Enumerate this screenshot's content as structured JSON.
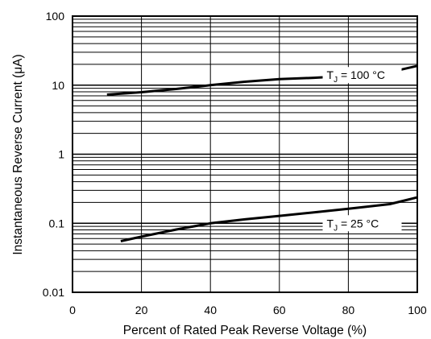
{
  "chart_data": {
    "type": "line",
    "title": "",
    "xlabel": "Percent of Rated Peak Reverse Voltage (%)",
    "ylabel": "Instantaneous Reverse Current (μA)",
    "xlim": [
      0,
      100
    ],
    "ylim": [
      0.01,
      100
    ],
    "yscale": "log",
    "grid": true,
    "x_ticks": [
      0,
      20,
      40,
      60,
      80,
      100
    ],
    "x_tick_labels": [
      "0",
      "20",
      "40",
      "60",
      "80",
      "100"
    ],
    "y_ticks": [
      0.01,
      0.1,
      1,
      10,
      100
    ],
    "y_tick_labels": [
      "0.01",
      "0.1",
      "1",
      "10",
      "100"
    ],
    "series": [
      {
        "name": "T_J = 100 °C",
        "label_main": "T",
        "label_sub": "J",
        "label_rest": " = 100 °C",
        "x": [
          10,
          20,
          30,
          40,
          50,
          60,
          70,
          80,
          92,
          100
        ],
        "y": [
          7.3,
          7.9,
          8.8,
          10.0,
          11.2,
          12.2,
          12.8,
          13.6,
          15.4,
          19.0
        ]
      },
      {
        "name": "T_J = 25 °C",
        "label_main": "T",
        "label_sub": "J",
        "label_rest": " = 25 °C",
        "x": [
          14,
          20,
          30,
          40,
          50,
          60,
          70,
          80,
          92,
          100
        ],
        "y": [
          0.055,
          0.064,
          0.081,
          0.1,
          0.114,
          0.128,
          0.144,
          0.162,
          0.189,
          0.237
        ]
      }
    ]
  }
}
